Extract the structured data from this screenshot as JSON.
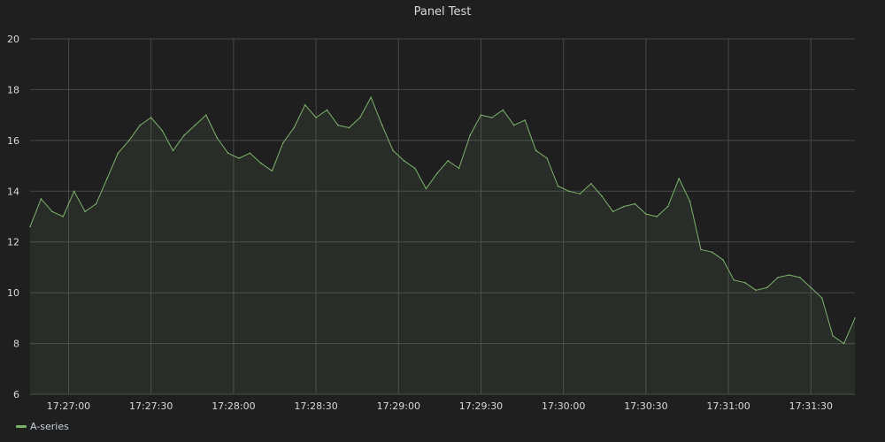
{
  "panel": {
    "title": "Panel Test"
  },
  "colors": {
    "series": "#7eb26d",
    "grid": "#47484a",
    "tick_text": "#d8d9da",
    "background": "#1f1f20"
  },
  "chart_data": {
    "type": "area",
    "title": "Panel Test",
    "xlabel": "",
    "ylabel": "",
    "ylim": [
      6,
      20
    ],
    "yticks": [
      6,
      8,
      10,
      12,
      14,
      16,
      18,
      20
    ],
    "xlim": [
      "17:26:46",
      "17:31:46"
    ],
    "xticks": [
      "17:27:00",
      "17:27:30",
      "17:28:00",
      "17:28:30",
      "17:29:00",
      "17:29:30",
      "17:30:00",
      "17:30:30",
      "17:31:00",
      "17:31:30"
    ],
    "grid": true,
    "legend": "bottom-left",
    "series": [
      {
        "name": "A-series",
        "x": [
          "17:26:46",
          "17:26:50",
          "17:26:54",
          "17:26:58",
          "17:27:02",
          "17:27:06",
          "17:27:10",
          "17:27:14",
          "17:27:18",
          "17:27:22",
          "17:27:26",
          "17:27:30",
          "17:27:34",
          "17:27:38",
          "17:27:42",
          "17:27:46",
          "17:27:50",
          "17:27:54",
          "17:27:58",
          "17:28:02",
          "17:28:06",
          "17:28:10",
          "17:28:14",
          "17:28:18",
          "17:28:22",
          "17:28:26",
          "17:28:30",
          "17:28:34",
          "17:28:38",
          "17:28:42",
          "17:28:46",
          "17:28:50",
          "17:28:54",
          "17:28:58",
          "17:29:02",
          "17:29:06",
          "17:29:10",
          "17:29:14",
          "17:29:18",
          "17:29:22",
          "17:29:26",
          "17:29:30",
          "17:29:34",
          "17:29:38",
          "17:29:42",
          "17:29:46",
          "17:29:50",
          "17:29:54",
          "17:29:58",
          "17:30:02",
          "17:30:06",
          "17:30:10",
          "17:30:14",
          "17:30:18",
          "17:30:22",
          "17:30:26",
          "17:30:30",
          "17:30:34",
          "17:30:38",
          "17:30:42",
          "17:30:46",
          "17:30:50",
          "17:30:54",
          "17:30:58",
          "17:31:02",
          "17:31:06",
          "17:31:10",
          "17:31:14",
          "17:31:18",
          "17:31:22",
          "17:31:26",
          "17:31:30",
          "17:31:34",
          "17:31:38",
          "17:31:42",
          "17:31:46"
        ],
        "values": [
          12.6,
          13.7,
          13.2,
          13.0,
          14.0,
          13.2,
          13.5,
          14.5,
          15.5,
          16.0,
          16.6,
          16.9,
          16.4,
          15.6,
          16.2,
          16.6,
          17.0,
          16.1,
          15.5,
          15.3,
          15.5,
          15.1,
          14.8,
          15.9,
          16.5,
          17.4,
          16.9,
          17.2,
          16.6,
          16.5,
          16.9,
          17.7,
          16.6,
          15.6,
          15.2,
          14.9,
          14.1,
          14.7,
          15.2,
          14.9,
          16.2,
          17.0,
          16.9,
          17.2,
          16.6,
          16.8,
          15.6,
          15.3,
          14.2,
          14.0,
          13.9,
          14.3,
          13.8,
          13.2,
          13.4,
          13.5,
          13.1,
          13.0,
          13.4,
          14.5,
          13.6,
          11.7,
          11.6,
          11.3,
          10.5,
          10.4,
          10.1,
          10.2,
          10.6,
          10.7,
          10.6,
          10.2,
          9.8,
          8.3,
          8.0,
          9.0
        ]
      }
    ]
  }
}
